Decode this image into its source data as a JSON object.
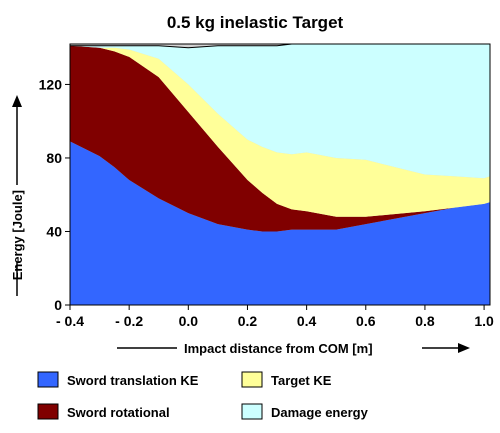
{
  "chart_data": {
    "type": "area",
    "title": "0.5 kg inelastic Target",
    "xlabel": "Impact distance from COM  [m]",
    "ylabel": "Energy [Joule]",
    "xlim": [
      -0.4,
      1.02
    ],
    "ylim": [
      0,
      142
    ],
    "plot_background_above_total": "#d3d3d3",
    "grid": false,
    "stacked": true,
    "x_ticks": [
      "- 0.4",
      "- 0.2",
      "0.0",
      "0.2",
      "0.4",
      "0.6",
      "0.8",
      "1.0"
    ],
    "y_ticks": [
      "0",
      "40",
      "80",
      "120"
    ],
    "x": [
      -0.4,
      -0.3,
      -0.25,
      -0.2,
      -0.1,
      0.0,
      0.1,
      0.2,
      0.25,
      0.3,
      0.35,
      0.4,
      0.5,
      0.6,
      0.8,
      0.9,
      1.0,
      1.02
    ],
    "series": [
      {
        "name": "Sword translation KE",
        "color": "#3366ff",
        "values": [
          89,
          81,
          75,
          68,
          58,
          50,
          44,
          41,
          40,
          40,
          41,
          41,
          41,
          44,
          50,
          53,
          55,
          56
        ]
      },
      {
        "name": "Sword rotational",
        "color": "#800000",
        "values": [
          52,
          59,
          63,
          67,
          66,
          55,
          42,
          27,
          21,
          15,
          11,
          10,
          7,
          4,
          1,
          0,
          0,
          0
        ]
      },
      {
        "name": "Target KE",
        "color": "#ffff99",
        "values": [
          0,
          0,
          2,
          4,
          10,
          15,
          18,
          22,
          25,
          28,
          30,
          32,
          32,
          31,
          20,
          17,
          14,
          14
        ]
      },
      {
        "name": "Damage energy",
        "color": "#ccffff",
        "values": [
          0,
          1,
          1,
          2,
          7,
          20,
          37,
          51,
          55,
          58,
          60,
          59,
          62,
          63,
          71,
          72,
          73,
          72
        ]
      }
    ],
    "legend": {
      "position": "bottom",
      "order": [
        "Sword translation KE",
        "Target KE",
        "Sword rotational",
        "Damage energy"
      ]
    }
  }
}
